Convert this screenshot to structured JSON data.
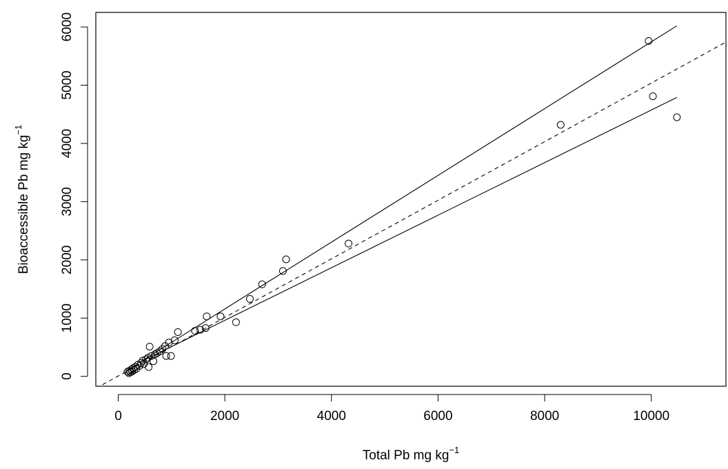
{
  "chart_data": {
    "type": "scatter",
    "xlabel": "Total Pb mg  kg",
    "xlabel_sup": "−1",
    "ylabel": "Bioaccessible Pb mg  kg",
    "ylabel_sup": "−1",
    "xlim": [
      -420,
      11400
    ],
    "ylim": [
      -170,
      6250
    ],
    "xticks": [
      0,
      2000,
      4000,
      6000,
      8000,
      10000
    ],
    "yticks": [
      0,
      1000,
      2000,
      3000,
      4000,
      5000,
      6000
    ],
    "grid": false,
    "legend": "none",
    "points": [
      {
        "x": 175,
        "y": 80
      },
      {
        "x": 200,
        "y": 55
      },
      {
        "x": 210,
        "y": 95
      },
      {
        "x": 230,
        "y": 70
      },
      {
        "x": 250,
        "y": 120
      },
      {
        "x": 260,
        "y": 85
      },
      {
        "x": 280,
        "y": 140
      },
      {
        "x": 300,
        "y": 110
      },
      {
        "x": 320,
        "y": 160
      },
      {
        "x": 340,
        "y": 130
      },
      {
        "x": 370,
        "y": 200
      },
      {
        "x": 400,
        "y": 180
      },
      {
        "x": 430,
        "y": 230
      },
      {
        "x": 460,
        "y": 270
      },
      {
        "x": 480,
        "y": 210
      },
      {
        "x": 520,
        "y": 290
      },
      {
        "x": 560,
        "y": 320
      },
      {
        "x": 570,
        "y": 160
      },
      {
        "x": 590,
        "y": 510
      },
      {
        "x": 620,
        "y": 350
      },
      {
        "x": 660,
        "y": 260
      },
      {
        "x": 690,
        "y": 380
      },
      {
        "x": 730,
        "y": 400
      },
      {
        "x": 780,
        "y": 430
      },
      {
        "x": 830,
        "y": 470
      },
      {
        "x": 880,
        "y": 520
      },
      {
        "x": 900,
        "y": 350
      },
      {
        "x": 950,
        "y": 580
      },
      {
        "x": 990,
        "y": 350
      },
      {
        "x": 1060,
        "y": 620
      },
      {
        "x": 1120,
        "y": 760
      },
      {
        "x": 1440,
        "y": 780
      },
      {
        "x": 1540,
        "y": 800
      },
      {
        "x": 1640,
        "y": 830
      },
      {
        "x": 1660,
        "y": 1030
      },
      {
        "x": 1920,
        "y": 1030
      },
      {
        "x": 2210,
        "y": 930
      },
      {
        "x": 2470,
        "y": 1330
      },
      {
        "x": 2700,
        "y": 1580
      },
      {
        "x": 3090,
        "y": 1810
      },
      {
        "x": 3150,
        "y": 2010
      },
      {
        "x": 4320,
        "y": 2280
      },
      {
        "x": 8300,
        "y": 4320
      },
      {
        "x": 9950,
        "y": 5760
      },
      {
        "x": 10030,
        "y": 4810
      },
      {
        "x": 10480,
        "y": 4450
      }
    ],
    "lines": [
      {
        "style": "dashed",
        "x": [
          -420,
          11400
        ],
        "y": [
          -206,
          5741
        ]
      },
      {
        "style": "solid",
        "x": [
          400,
          10480
        ],
        "y": [
          240,
          6020
        ]
      },
      {
        "style": "solid",
        "x": [
          400,
          10480
        ],
        "y": [
          240,
          4790
        ]
      }
    ]
  }
}
